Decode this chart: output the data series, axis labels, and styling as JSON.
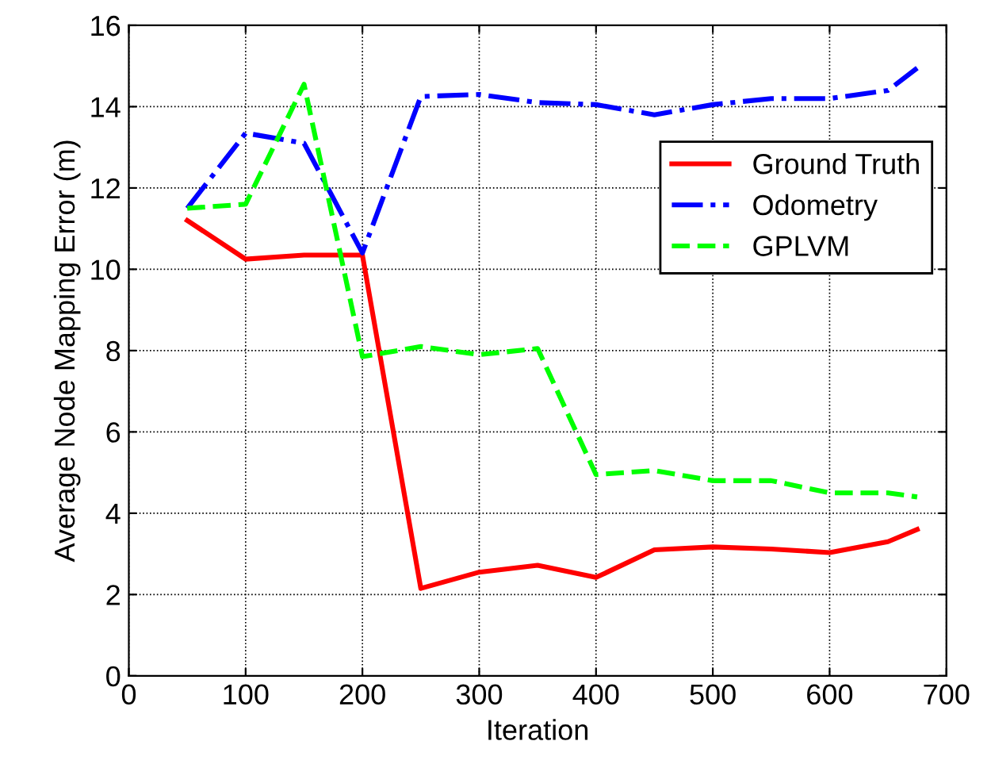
{
  "chart_data": {
    "type": "line",
    "xlabel": "Iteration",
    "ylabel": "Average Node Mapping Error (m)",
    "x": [
      50,
      100,
      150,
      200,
      250,
      300,
      350,
      400,
      450,
      500,
      550,
      600,
      650,
      675
    ],
    "series": [
      {
        "name": "Ground Truth",
        "color": "#ff0000",
        "line_style": "solid",
        "values": [
          11.2,
          10.25,
          10.35,
          10.35,
          2.15,
          2.55,
          2.72,
          2.42,
          3.1,
          3.17,
          3.12,
          3.03,
          3.3,
          3.6
        ]
      },
      {
        "name": "Odometry",
        "color": "#0000ff",
        "line_style": "dashdot",
        "values": [
          11.5,
          13.35,
          13.1,
          10.4,
          14.25,
          14.3,
          14.1,
          14.05,
          13.8,
          14.05,
          14.2,
          14.2,
          14.4,
          14.95
        ]
      },
      {
        "name": "GPLVM",
        "color": "#00ff00",
        "line_style": "dashed",
        "values": [
          11.5,
          11.6,
          14.55,
          7.85,
          8.1,
          7.9,
          8.05,
          4.95,
          5.05,
          4.8,
          4.8,
          4.5,
          4.5,
          4.4
        ]
      }
    ],
    "xlim": [
      0,
      700
    ],
    "xticks": [
      0,
      100,
      200,
      300,
      400,
      500,
      600,
      700
    ],
    "ylim": [
      0,
      16
    ],
    "yticks": [
      0,
      2,
      4,
      6,
      8,
      10,
      12,
      14,
      16
    ],
    "grid": true,
    "legend": "right",
    "marker": "none"
  }
}
